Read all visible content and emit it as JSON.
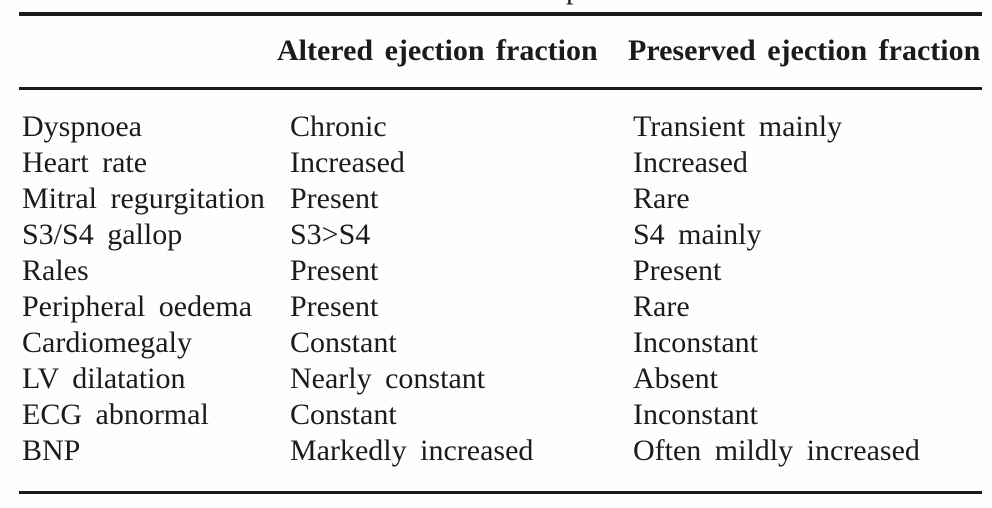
{
  "page": {
    "caption_fragment": "p"
  },
  "colors": {
    "text": "#1d1a1b",
    "rule": "#1d1a1b",
    "background": "#fefefe"
  },
  "table": {
    "header": {
      "altered": "Altered ejection fraction",
      "preserved": "Preserved ejection fraction"
    },
    "rows": [
      {
        "label": "Dyspnoea",
        "altered": "Chronic",
        "preserved": "Transient mainly"
      },
      {
        "label": "Heart rate",
        "altered": "Increased",
        "preserved": "Increased"
      },
      {
        "label": "Mitral regurgitation",
        "altered": "Present",
        "preserved": "Rare"
      },
      {
        "label": "S3/S4 gallop",
        "altered": "S3>S4",
        "preserved": "S4 mainly"
      },
      {
        "label": "Rales",
        "altered": "Present",
        "preserved": "Present"
      },
      {
        "label": "Peripheral oedema",
        "altered": "Present",
        "preserved": "Rare"
      },
      {
        "label": "Cardiomegaly",
        "altered": "Constant",
        "preserved": "Inconstant"
      },
      {
        "label": "LV dilatation",
        "altered": "Nearly constant",
        "preserved": "Absent"
      },
      {
        "label": "ECG abnormal",
        "altered": "Constant",
        "preserved": "Inconstant"
      },
      {
        "label": "BNP",
        "altered": "Markedly increased",
        "preserved": "Often mildly increased"
      }
    ]
  }
}
